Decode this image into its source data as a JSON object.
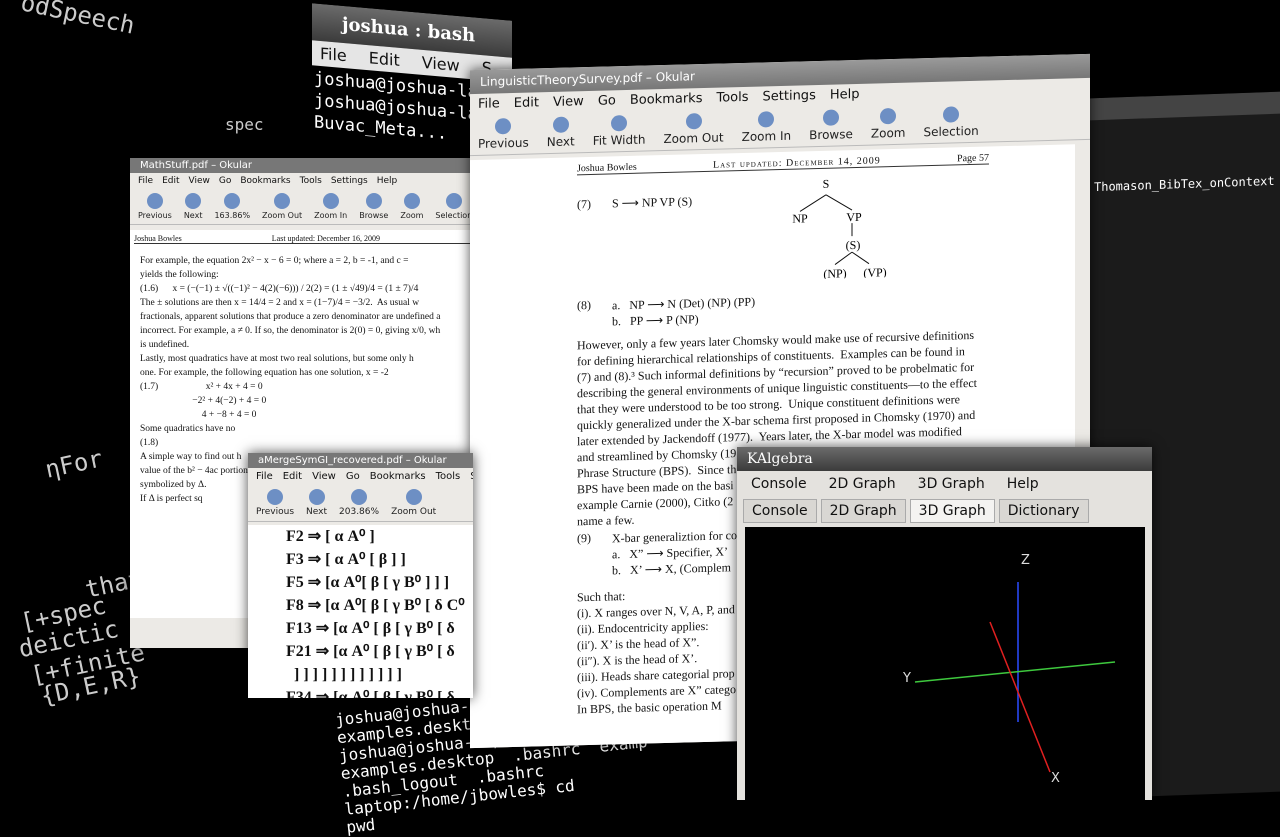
{
  "background": {
    "labels": [
      "odSpeech",
      "spec",
      "ηFor",
      "that",
      "[+spec",
      "deictic",
      "[+finite",
      "{D,E,R}"
    ],
    "right_window_label": "Thomason_BibTex_onContext"
  },
  "terminal": {
    "title": "joshua : bash",
    "menu": [
      "File",
      "Edit",
      "View",
      "S"
    ],
    "lines": [
      "joshua@joshua-la",
      "joshua@joshua-la",
      "Buvac_Meta..."
    ],
    "bottom_lines": [
      "joshua@joshua-",
      "examples.deskto",
      "joshua@joshua-laptop:/home/",
      "examples.desktop  .bashrc  examp",
      ".bash_logout  .bashrc",
      "laptop:/home/jbowles$ cd",
      "pwd"
    ]
  },
  "okular": {
    "title": "LinguisticTheorySurvey.pdf – Okular",
    "menu": [
      "File",
      "Edit",
      "View",
      "Go",
      "Bookmarks",
      "Tools",
      "Settings",
      "Help"
    ],
    "toolbar": [
      "Previous",
      "Next",
      "Fit Width",
      "Zoom Out",
      "Zoom In",
      "Browse",
      "Zoom",
      "Selection"
    ],
    "page_header": {
      "author": "Joshua Bowles",
      "updated": "Last updated: December 14, 2009",
      "page": "Page 57"
    },
    "ex7": {
      "number": "(7)",
      "rule": "S ⟶ NP VP (S)",
      "tree": [
        "S",
        "NP",
        "VP",
        "(S)",
        "(NP)",
        "(VP)"
      ]
    },
    "ex8": {
      "number": "(8)",
      "items": [
        "a.   NP ⟶ N (Det) (NP) (PP)",
        "b.   PP ⟶ P (NP)"
      ]
    },
    "paragraph": [
      "However, only a few years later Chomsky would make use of recursive definitions",
      "for defining hierarchical relationships of constituents.  Examples can be found in",
      "(7) and (8).³ Such informal definitions by “recursion” proved to be probelmatic for",
      "describing the general environments of unique linguistic constituents—to the effect",
      "that they were understood to be too strong.  Unique constituent definitions were",
      "quickly generalized under the X-bar schema first proposed in Chomsky (1970) and",
      "later extended by Jackendoff (1977).  Years later, the X-bar model was modified",
      "and streamlined by Chomsky (19",
      "Phrase Structure (BPS).  Since th",
      "BPS have been made on the basi",
      "example Carnie (2000), Citko (2",
      "name a few."
    ],
    "ex9": {
      "number": "(9)",
      "lines": [
        "X-bar generaliztion for co",
        "a.   X” ⟶ Specifier, X’",
        "b.   X’ ⟶ X, (Complem"
      ]
    },
    "conditions": [
      "Such that:",
      "(i). X ranges over N, V, A, P, and",
      "(ii). Endocentricity applies:",
      "(ii′). X’ is the head of X”.",
      "(ii″). X is the head of X’.",
      "(iii). Heads share categorial prop",
      "(iv). Complements are X” catego",
      "In BPS, the basic operation M"
    ]
  },
  "mathstuff": {
    "title": "MathStuff.pdf – Okular",
    "menu": [
      "File",
      "Edit",
      "View",
      "Go",
      "Bookmarks",
      "Tools",
      "Settings",
      "Help"
    ],
    "toolbar": [
      "Previous",
      "Next",
      "163.86%",
      "Zoom Out",
      "Zoom In",
      "Browse",
      "Zoom",
      "Selection"
    ],
    "page_header": {
      "author": "Joshua Bowles",
      "updated": "Last updated: December 16, 2009"
    },
    "lines": [
      "For example, the equation 2x² − x − 6 = 0; where a = 2, b = -1, and c =",
      "yields the following:",
      "(1.6)      x = (−(−1) ± √((−1)² − 4(2)(−6))) / 2(2) = (1 ± √49)/4 = (1 ± 7)/4",
      "The ± solutions are then x = 14/4 = 2 and x = (1−7)/4 = −3/2.  As usual w",
      "fractionals, apparent solutions that produce a zero denominator are undefined a",
      "incorrect. For example, a ≠ 0. If so, the denominator is 2(0) = 0, giving x/0, wh",
      "is undefined.",
      "Lastly, most quadratics have at most two real solutions, but some only h",
      "one. For example, the following equation has one solution, x = -2",
      "(1.7)                    x² + 4x + 4 = 0",
      "                      −2² + 4(−2) + 4 = 0",
      "                          4 + −8 + 4 = 0",
      "Some quadratics have no",
      "(1.8)",
      "A simple way to find out h",
      "value of the b² − 4ac portion",
      "symbolized by Δ.",
      "If Δ is perfect sq"
    ]
  },
  "mergesym": {
    "title": "aMergeSymGI_recovered.pdf – Okular",
    "menu": [
      "File",
      "Edit",
      "View",
      "Go",
      "Bookmarks",
      "Tools",
      "Setti"
    ],
    "toolbar": [
      "Previous",
      "Next",
      "203.86%",
      "Zoom Out"
    ],
    "lines": [
      "F2 ⇒ [ α A⁰ ]",
      "F3 ⇒ [ α A⁰ [ β ] ]",
      "F5 ⇒ [α A⁰[ β [ γ B⁰ ] ] ]",
      "F8 ⇒ [α A⁰[ β [ γ B⁰ [ δ C⁰",
      "F13 ⇒ [α A⁰ [ β [ γ B⁰ [ δ",
      "F21 ⇒ [α A⁰ [ β [ γ B⁰ [ δ",
      "  ] ] ] ] ] ] ] ] ] ] ] ]",
      "F34 ⇒ [α A⁰ [ β [ γ B⁰ [ δ"
    ]
  },
  "kalgebra": {
    "title": "KAlgebra",
    "menu": [
      "Console",
      "2D Graph",
      "3D Graph",
      "Help"
    ],
    "tabs": [
      "Console",
      "2D Graph",
      "3D Graph",
      "Dictionary"
    ],
    "axes": [
      "Z",
      "Y",
      "X"
    ]
  }
}
